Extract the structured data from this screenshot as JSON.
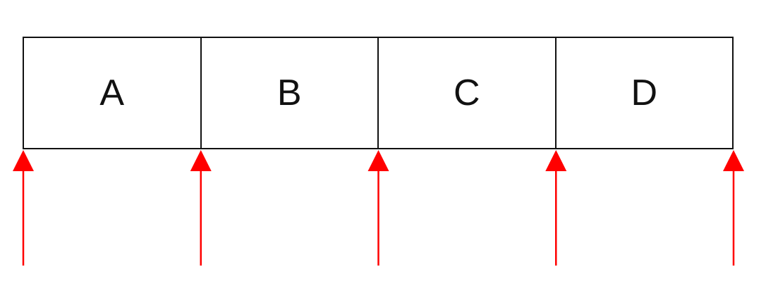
{
  "diagram": {
    "cells": [
      {
        "label": "A"
      },
      {
        "label": "B"
      },
      {
        "label": "C"
      },
      {
        "label": "D"
      }
    ],
    "arrow_count": 5,
    "colors": {
      "box_stroke": "#111111",
      "arrow": "#ff0000"
    }
  }
}
